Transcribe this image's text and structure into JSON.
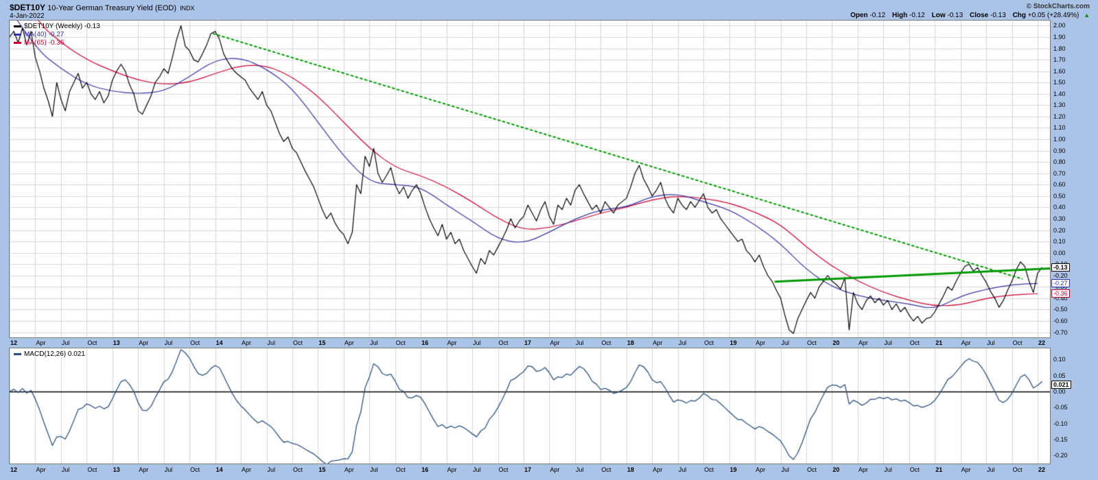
{
  "header": {
    "symbol": "$DET10Y",
    "title": "10-Year German Treasury Yield (EOD)",
    "exchange": "INDX",
    "date": "4-Jan-2022",
    "watermark": "© StockCharts.com",
    "quote": {
      "open_label": "Open",
      "open": "-0.12",
      "high_label": "High",
      "high": "-0.12",
      "low_label": "Low",
      "low": "-0.13",
      "close_label": "Close",
      "close": "-0.13",
      "chg_label": "Chg",
      "chg": "+0.05 (+28.49%)",
      "direction": "▲"
    }
  },
  "legend": {
    "price": "$DET10Y (Weekly) -0.13",
    "ma40": "MA(40) -0.27",
    "ma65": "MA(65) -0.36",
    "macd": "MACD(12,26) 0.021"
  },
  "badges": {
    "price": "-0.13",
    "ma40": "-0.27",
    "ma65": "-0.36",
    "macd": "0.021"
  },
  "colors": {
    "background": "#abc3e6",
    "grid": "#d4d4d4",
    "price": "#000000",
    "ma40": "#3535a5",
    "ma65": "#cc0033",
    "macd": "#2a4f7e",
    "trendline_green": "#009900",
    "up_green": "#009600",
    "zero_line": "#000000"
  },
  "chart_data": {
    "type": "line",
    "title": "$DET10Y 10-Year German Treasury Yield (EOD) INDX — Weekly with MA(40), MA(65) and MACD(12,26)",
    "x_range": [
      2012.0,
      2022.12
    ],
    "xticks": [
      {
        "label": "12",
        "pos": 2012.0,
        "bold": true
      },
      {
        "label": "Apr",
        "pos": 2012.25,
        "bold": false
      },
      {
        "label": "Jul",
        "pos": 2012.5,
        "bold": false
      },
      {
        "label": "Oct",
        "pos": 2012.75,
        "bold": false
      },
      {
        "label": "13",
        "pos": 2013.0,
        "bold": true
      },
      {
        "label": "Apr",
        "pos": 2013.25,
        "bold": false
      },
      {
        "label": "Jul",
        "pos": 2013.5,
        "bold": false
      },
      {
        "label": "Oct",
        "pos": 2013.75,
        "bold": false
      },
      {
        "label": "14",
        "pos": 2014.0,
        "bold": true
      },
      {
        "label": "Apr",
        "pos": 2014.25,
        "bold": false
      },
      {
        "label": "Jul",
        "pos": 2014.5,
        "bold": false
      },
      {
        "label": "Oct",
        "pos": 2014.75,
        "bold": false
      },
      {
        "label": "15",
        "pos": 2015.0,
        "bold": true
      },
      {
        "label": "Apr",
        "pos": 2015.25,
        "bold": false
      },
      {
        "label": "Jul",
        "pos": 2015.5,
        "bold": false
      },
      {
        "label": "Oct",
        "pos": 2015.75,
        "bold": false
      },
      {
        "label": "16",
        "pos": 2016.0,
        "bold": true
      },
      {
        "label": "Apr",
        "pos": 2016.25,
        "bold": false
      },
      {
        "label": "Jul",
        "pos": 2016.5,
        "bold": false
      },
      {
        "label": "Oct",
        "pos": 2016.75,
        "bold": false
      },
      {
        "label": "17",
        "pos": 2017.0,
        "bold": true
      },
      {
        "label": "Apr",
        "pos": 2017.25,
        "bold": false
      },
      {
        "label": "Jul",
        "pos": 2017.5,
        "bold": false
      },
      {
        "label": "Oct",
        "pos": 2017.75,
        "bold": false
      },
      {
        "label": "18",
        "pos": 2018.0,
        "bold": true
      },
      {
        "label": "Apr",
        "pos": 2018.25,
        "bold": false
      },
      {
        "label": "Jul",
        "pos": 2018.5,
        "bold": false
      },
      {
        "label": "Oct",
        "pos": 2018.75,
        "bold": false
      },
      {
        "label": "19",
        "pos": 2019.0,
        "bold": true
      },
      {
        "label": "Apr",
        "pos": 2019.25,
        "bold": false
      },
      {
        "label": "Jul",
        "pos": 2019.5,
        "bold": false
      },
      {
        "label": "Oct",
        "pos": 2019.75,
        "bold": false
      },
      {
        "label": "20",
        "pos": 2020.0,
        "bold": true
      },
      {
        "label": "Apr",
        "pos": 2020.25,
        "bold": false
      },
      {
        "label": "Jul",
        "pos": 2020.5,
        "bold": false
      },
      {
        "label": "Oct",
        "pos": 2020.75,
        "bold": false
      },
      {
        "label": "21",
        "pos": 2021.0,
        "bold": true
      },
      {
        "label": "Apr",
        "pos": 2021.25,
        "bold": false
      },
      {
        "label": "Jul",
        "pos": 2021.5,
        "bold": false
      },
      {
        "label": "Oct",
        "pos": 2021.75,
        "bold": false
      },
      {
        "label": "22",
        "pos": 2022.0,
        "bold": true
      }
    ],
    "main": {
      "ylim": [
        -0.745,
        2.045
      ],
      "yticks": [
        2.0,
        1.9,
        1.8,
        1.7,
        1.6,
        1.5,
        1.4,
        1.3,
        1.2,
        1.1,
        1.0,
        0.9,
        0.8,
        0.7,
        0.6,
        0.5,
        0.4,
        0.3,
        0.2,
        0.1,
        0.0,
        -0.1,
        -0.2,
        -0.3,
        -0.4,
        -0.5,
        -0.6,
        -0.7
      ],
      "badge_values": {
        "price": -0.13,
        "ma40": -0.27,
        "ma65": -0.36
      },
      "series": [
        {
          "name": "$DET10Y weekly close",
          "x_start": 2012.0,
          "x_step": 0.0416667,
          "values": [
            1.9,
            1.95,
            1.85,
            1.98,
            1.83,
            1.95,
            1.72,
            1.6,
            1.45,
            1.34,
            1.2,
            1.5,
            1.35,
            1.25,
            1.42,
            1.5,
            1.58,
            1.45,
            1.5,
            1.4,
            1.35,
            1.42,
            1.32,
            1.38,
            1.52,
            1.6,
            1.66,
            1.6,
            1.48,
            1.4,
            1.25,
            1.22,
            1.3,
            1.38,
            1.5,
            1.55,
            1.62,
            1.58,
            1.72,
            1.88,
            2.0,
            1.82,
            1.78,
            1.7,
            1.68,
            1.75,
            1.83,
            1.93,
            1.95,
            1.88,
            1.75,
            1.68,
            1.62,
            1.58,
            1.55,
            1.52,
            1.45,
            1.4,
            1.35,
            1.42,
            1.3,
            1.25,
            1.15,
            1.05,
            0.98,
            1.02,
            0.92,
            0.88,
            0.8,
            0.72,
            0.65,
            0.58,
            0.48,
            0.38,
            0.3,
            0.35,
            0.26,
            0.2,
            0.16,
            0.08,
            0.18,
            0.6,
            0.52,
            0.85,
            0.76,
            0.92,
            0.7,
            0.62,
            0.68,
            0.75,
            0.6,
            0.52,
            0.58,
            0.48,
            0.55,
            0.6,
            0.52,
            0.4,
            0.3,
            0.22,
            0.15,
            0.25,
            0.12,
            0.18,
            0.08,
            0.12,
            0.02,
            -0.05,
            -0.12,
            -0.18,
            -0.05,
            -0.1,
            0.02,
            -0.02,
            0.05,
            0.12,
            0.2,
            0.3,
            0.22,
            0.28,
            0.32,
            0.42,
            0.35,
            0.28,
            0.38,
            0.45,
            0.32,
            0.25,
            0.42,
            0.38,
            0.48,
            0.42,
            0.55,
            0.6,
            0.52,
            0.45,
            0.38,
            0.42,
            0.35,
            0.45,
            0.4,
            0.35,
            0.42,
            0.45,
            0.48,
            0.58,
            0.7,
            0.77,
            0.65,
            0.58,
            0.5,
            0.55,
            0.62,
            0.48,
            0.4,
            0.35,
            0.48,
            0.42,
            0.38,
            0.45,
            0.4,
            0.46,
            0.52,
            0.4,
            0.35,
            0.38,
            0.3,
            0.25,
            0.2,
            0.15,
            0.1,
            0.12,
            0.02,
            -0.02,
            -0.08,
            -0.02,
            -0.12,
            -0.2,
            -0.25,
            -0.33,
            -0.4,
            -0.55,
            -0.68,
            -0.71,
            -0.58,
            -0.5,
            -0.42,
            -0.35,
            -0.4,
            -0.3,
            -0.25,
            -0.2,
            -0.25,
            -0.28,
            -0.32,
            -0.22,
            -0.68,
            -0.35,
            -0.45,
            -0.5,
            -0.42,
            -0.38,
            -0.44,
            -0.4,
            -0.46,
            -0.42,
            -0.5,
            -0.45,
            -0.52,
            -0.48,
            -0.55,
            -0.6,
            -0.56,
            -0.62,
            -0.58,
            -0.57,
            -0.52,
            -0.45,
            -0.38,
            -0.3,
            -0.33,
            -0.25,
            -0.18,
            -0.12,
            -0.1,
            -0.16,
            -0.13,
            -0.2,
            -0.26,
            -0.34,
            -0.4,
            -0.48,
            -0.42,
            -0.33,
            -0.25,
            -0.15,
            -0.08,
            -0.12,
            -0.25,
            -0.35,
            -0.18,
            -0.13
          ]
        }
      ],
      "overlays": [
        {
          "name": "MA(40)",
          "period_weeks": 40,
          "x_start": 2012.0,
          "x_step": 0.25,
          "values": [
            2.15,
            1.8,
            1.62,
            1.48,
            1.42,
            1.4,
            1.42,
            1.55,
            1.7,
            1.72,
            1.62,
            1.45,
            1.15,
            0.85,
            0.62,
            0.6,
            0.58,
            0.42,
            0.28,
            0.12,
            0.08,
            0.18,
            0.3,
            0.38,
            0.4,
            0.5,
            0.52,
            0.45,
            0.38,
            0.25,
            0.08,
            -0.15,
            -0.3,
            -0.38,
            -0.42,
            -0.45,
            -0.5,
            -0.38,
            -0.32,
            -0.28,
            -0.27
          ]
        },
        {
          "name": "MA(65)",
          "period_weeks": 65,
          "x_start": 2012.0,
          "x_step": 0.25,
          "values": [
            2.45,
            2.05,
            1.85,
            1.7,
            1.6,
            1.52,
            1.48,
            1.5,
            1.58,
            1.65,
            1.65,
            1.55,
            1.38,
            1.15,
            0.92,
            0.75,
            0.68,
            0.58,
            0.45,
            0.3,
            0.2,
            0.22,
            0.28,
            0.35,
            0.4,
            0.47,
            0.5,
            0.48,
            0.44,
            0.36,
            0.25,
            0.05,
            -0.12,
            -0.25,
            -0.35,
            -0.42,
            -0.47,
            -0.46,
            -0.4,
            -0.37,
            -0.36
          ]
        }
      ],
      "trendlines": [
        {
          "name": "downtrend-line",
          "style": "dashed",
          "width": 2,
          "x1": 2013.98,
          "y1": 1.93,
          "x2": 2021.85,
          "y2": -0.23
        },
        {
          "name": "resistance-line",
          "style": "solid",
          "width": 3,
          "x1": 2019.45,
          "y1": -0.255,
          "x2": 2022.12,
          "y2": -0.138
        }
      ]
    },
    "macd": {
      "ylim": [
        -0.225,
        0.135
      ],
      "yticks": [
        0.1,
        0.05,
        0.0,
        -0.05,
        -0.1,
        -0.15,
        -0.2
      ],
      "fast": 12,
      "slow": 26,
      "value": 0.021,
      "points_per_week_divisor": 2
    }
  }
}
